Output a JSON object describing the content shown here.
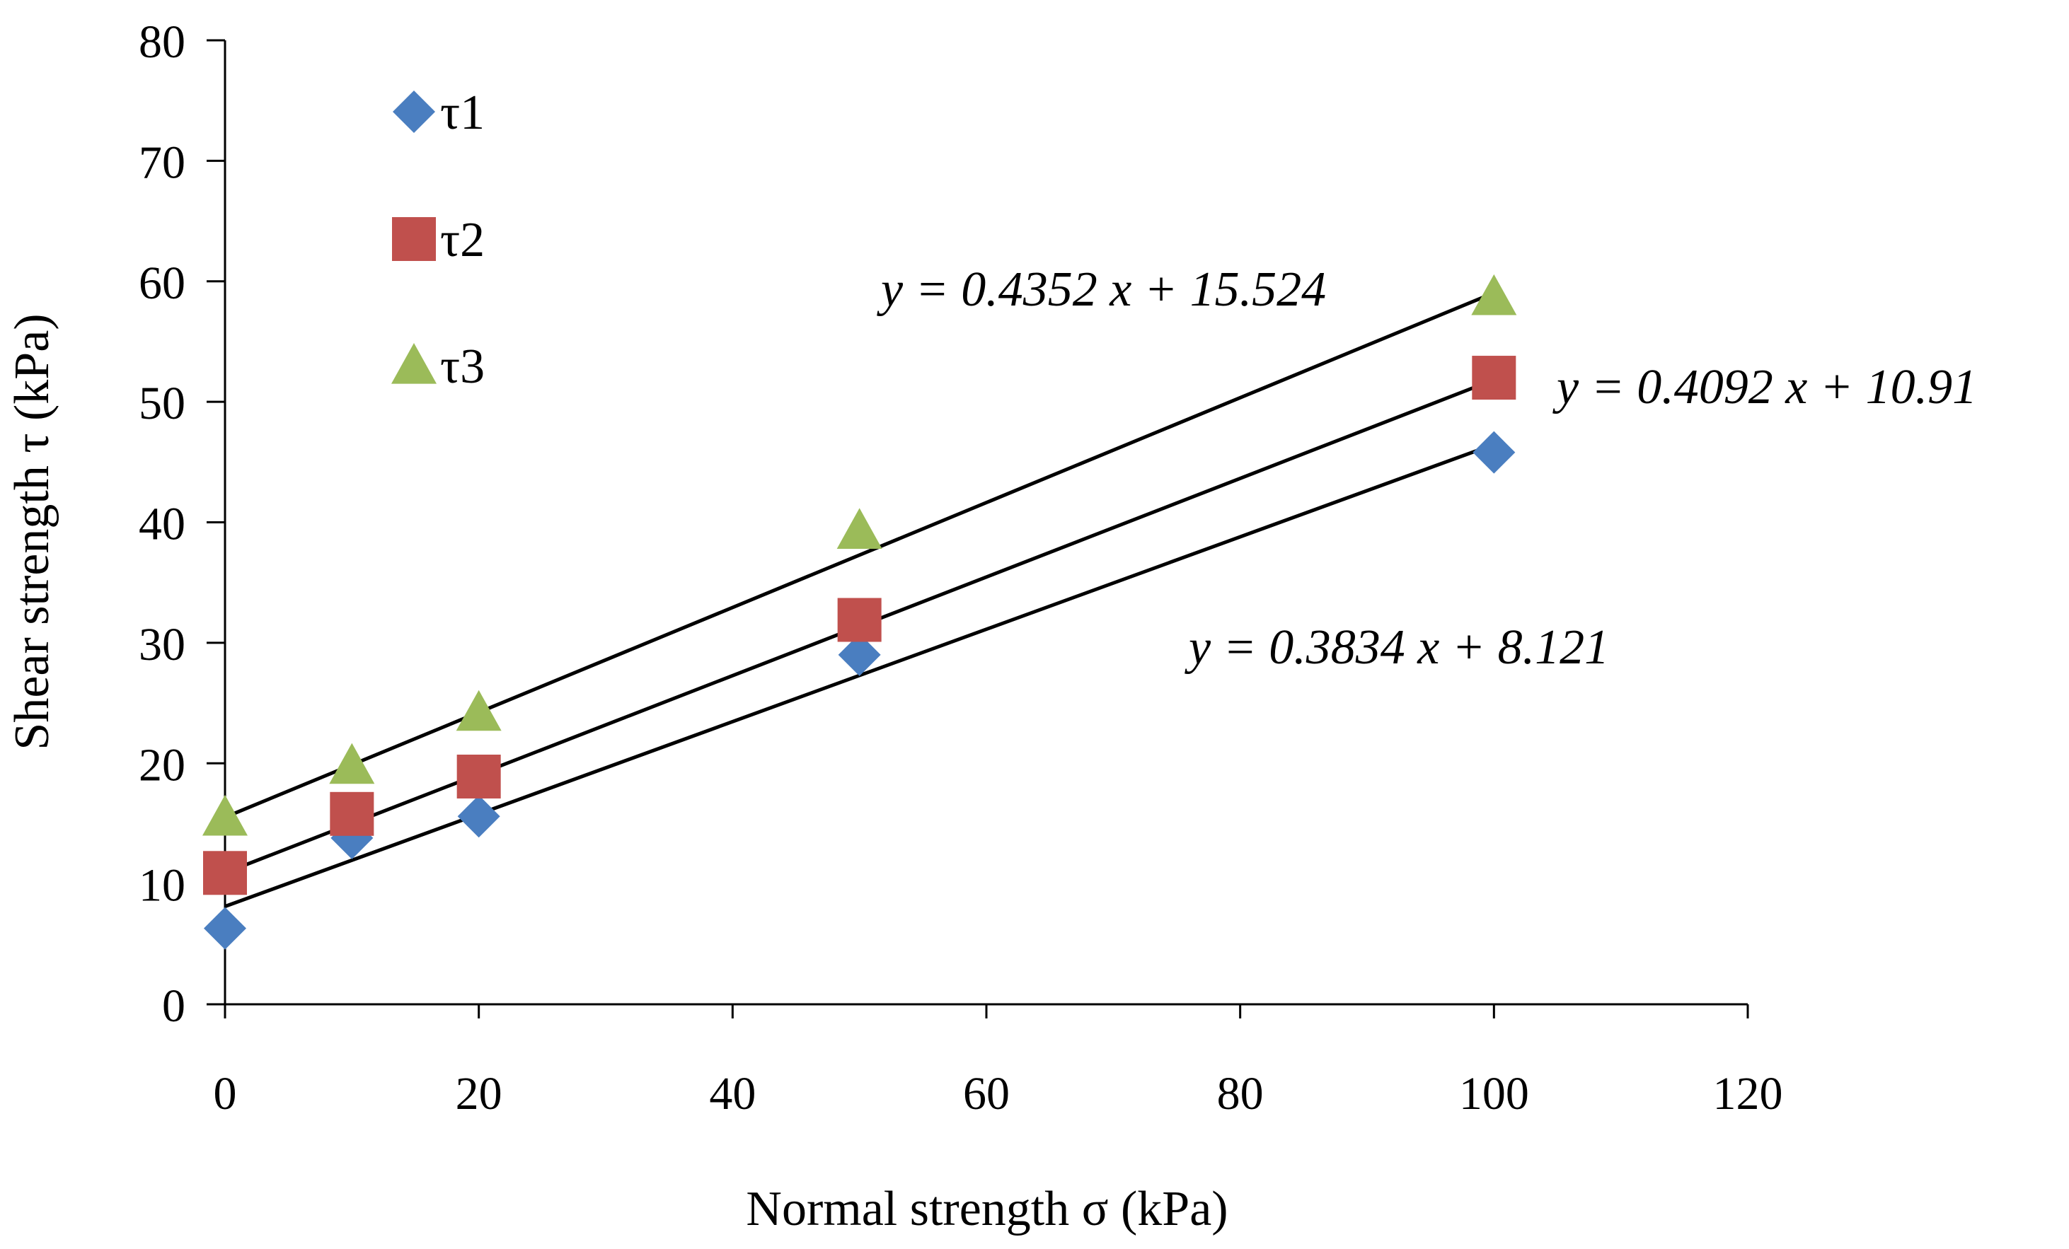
{
  "chart_data": {
    "type": "scatter",
    "title": "",
    "xlabel": "Normal strength σ (kPa)",
    "ylabel": "Shear strength τ (kPa)",
    "xlim": [
      0,
      120
    ],
    "ylim": [
      0,
      80
    ],
    "x_ticks": [
      0,
      20,
      40,
      60,
      80,
      100,
      120
    ],
    "y_ticks": [
      0,
      10,
      20,
      30,
      40,
      50,
      60,
      70,
      80
    ],
    "grid": false,
    "legend_position": "top-left",
    "series": [
      {
        "name": "τ1",
        "marker": "diamond",
        "color": "#4A7EC0",
        "x": [
          0,
          10,
          20,
          50,
          100
        ],
        "y": [
          6.3,
          13.8,
          15.6,
          29.0,
          45.8
        ],
        "trendline": {
          "slope": 0.3834,
          "intercept": 8.121,
          "equation": "y = 0.3834 x + 8.121"
        }
      },
      {
        "name": "τ2",
        "marker": "square",
        "color": "#C0504D",
        "x": [
          0,
          10,
          20,
          50,
          100
        ],
        "y": [
          10.9,
          15.8,
          18.9,
          31.9,
          52.0
        ],
        "trendline": {
          "slope": 0.4092,
          "intercept": 10.91,
          "equation": "y = 0.4092 x + 10.91"
        }
      },
      {
        "name": "τ3",
        "marker": "triangle",
        "color": "#9BBB59",
        "x": [
          0,
          10,
          20,
          50,
          100
        ],
        "y": [
          15.5,
          19.8,
          24.2,
          39.3,
          58.7
        ],
        "trendline": {
          "slope": 0.4352,
          "intercept": 15.524,
          "equation": "y = 0.4352 x + 15.524"
        }
      }
    ]
  }
}
